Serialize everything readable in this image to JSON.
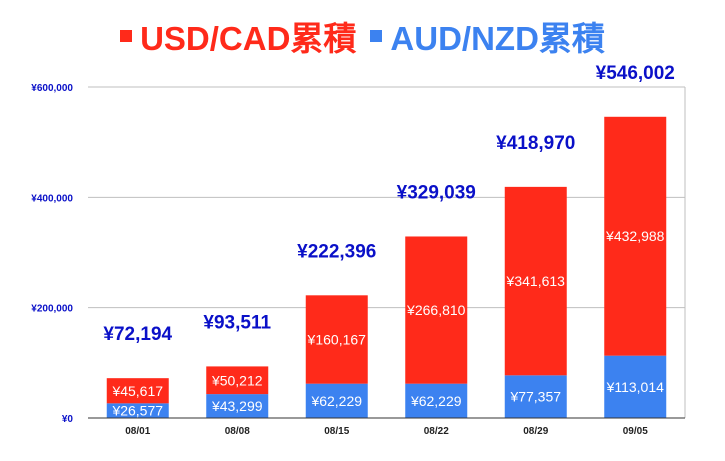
{
  "chart_data": {
    "type": "bar",
    "stacked": true,
    "categories": [
      "08/01",
      "08/08",
      "08/15",
      "08/22",
      "08/29",
      "09/05"
    ],
    "series": [
      {
        "name": "AUD/NZD累積",
        "color": "#3c82f0",
        "values": [
          26577,
          43299,
          62229,
          62229,
          77357,
          113014
        ],
        "labels": [
          "¥26,577",
          "¥43,299",
          "¥62,229",
          "¥62,229",
          "¥77,357",
          "¥113,014"
        ]
      },
      {
        "name": "USD/CAD累積",
        "color": "#ff2a1a",
        "values": [
          45617,
          50212,
          160167,
          266810,
          341613,
          432988
        ],
        "labels": [
          "¥45,617",
          "¥50,212",
          "¥160,167",
          "¥266,810",
          "¥341,613",
          "¥432,988"
        ]
      }
    ],
    "totals": [
      72194,
      93511,
      222396,
      329039,
      418970,
      546002
    ],
    "total_labels": [
      "¥72,194",
      "¥93,511",
      "¥222,396",
      "¥329,039",
      "¥418,970",
      "¥546,002"
    ],
    "ylim": [
      0,
      600000
    ],
    "yticks": [
      0,
      200000,
      400000,
      600000
    ],
    "ytick_labels": [
      "¥0",
      "¥200,000",
      "¥400,000",
      "¥600,000"
    ],
    "grid": "horizontal",
    "legend_position": "top",
    "title": "",
    "xlabel": "",
    "ylabel": ""
  },
  "colors": {
    "total_label": "#0a10c8",
    "axis_text": "#0a10c8",
    "gridline": "#bfbfbf",
    "axis_line": "#333333"
  }
}
